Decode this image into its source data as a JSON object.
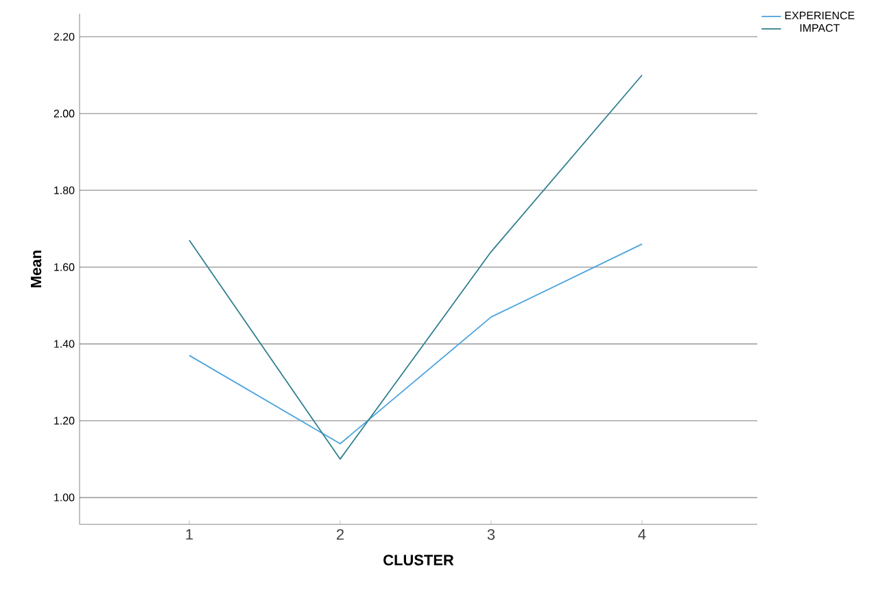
{
  "chart_data": {
    "type": "line",
    "xlabel": "CLUSTER",
    "ylabel": "Mean",
    "categories": [
      "1",
      "2",
      "3",
      "4"
    ],
    "series": [
      {
        "name": "EXPERIENCE",
        "color": "#4aa3e0",
        "values": [
          1.37,
          1.14,
          1.47,
          1.66
        ]
      },
      {
        "name": "IMPACT",
        "color": "#2f7f8e",
        "values": [
          1.67,
          1.1,
          1.64,
          2.1
        ]
      }
    ],
    "ylim": [
      0.93,
      2.26
    ],
    "yticks": [
      {
        "value": 1.0,
        "label": "1.00"
      },
      {
        "value": 1.2,
        "label": "1.20"
      },
      {
        "value": 1.4,
        "label": "1.40"
      },
      {
        "value": 1.6,
        "label": "1.60"
      },
      {
        "value": 1.8,
        "label": "1.80"
      },
      {
        "value": 2.0,
        "label": "2.00"
      },
      {
        "value": 2.2,
        "label": "2.20"
      }
    ],
    "grid": "y",
    "legend": "top right",
    "line_style": "solid",
    "marker": "none"
  }
}
